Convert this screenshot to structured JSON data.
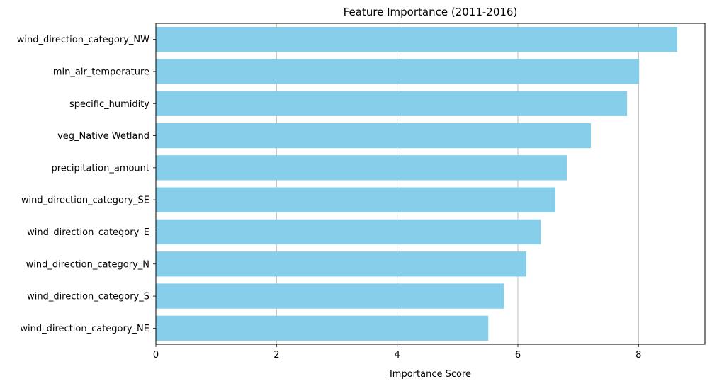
{
  "chart_data": {
    "type": "bar",
    "orientation": "horizontal",
    "title": "Feature Importance (2011-2016)",
    "xlabel": "Importance Score",
    "ylabel": "",
    "xlim": [
      0,
      9.1
    ],
    "xticks": [
      0,
      2,
      4,
      6,
      8
    ],
    "grid": "vertical",
    "bar_color": "#87ceeb",
    "categories": [
      "wind_direction_category_NW",
      "min_air_temperature",
      "specific_humidity",
      "veg_Native Wetland",
      "precipitation_amount",
      "wind_direction_category_SE",
      "wind_direction_category_E",
      "wind_direction_category_N",
      "wind_direction_category_S",
      "wind_direction_category_NE"
    ],
    "values": [
      8.64,
      8.01,
      7.81,
      7.21,
      6.81,
      6.62,
      6.38,
      6.14,
      5.77,
      5.51
    ]
  }
}
